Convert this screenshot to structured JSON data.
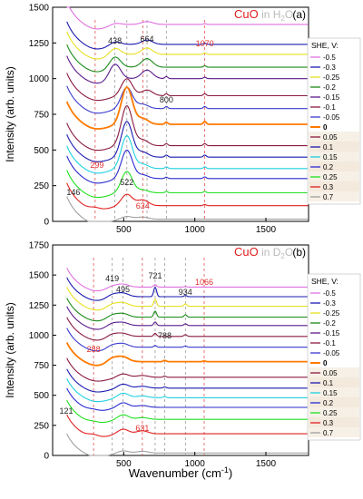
{
  "chart_data": [
    {
      "type": "line",
      "panel_label": "(a)",
      "title_parts": [
        "CuO",
        " in ",
        "H",
        "2",
        "O"
      ],
      "xlabel": "",
      "ylabel": "Intensity (arb. units)",
      "xlim": [
        0,
        1800
      ],
      "ylim": [
        0,
        1500
      ],
      "xticks": [
        "500",
        "1000",
        "1500"
      ],
      "yticks": [
        "0",
        "250",
        "500",
        "750",
        "1000",
        "1250",
        "1500"
      ],
      "legend_title": "SHE, V:",
      "legend_position": "right",
      "peak_labels": [
        {
          "x": 438,
          "text": "438",
          "color": "#222222"
        },
        {
          "x": 664,
          "text": "664",
          "color": "#222222"
        },
        {
          "x": 1070,
          "text": "1070",
          "color": "#e03030"
        },
        {
          "x": 800,
          "text": "800",
          "color": "#222222"
        },
        {
          "x": 299,
          "text": "299",
          "color": "#e03030"
        },
        {
          "x": 522,
          "text": "522",
          "color": "#222222"
        },
        {
          "x": 146,
          "text": "146",
          "color": "#222222"
        },
        {
          "x": 634,
          "text": "634",
          "color": "#e03030"
        }
      ],
      "dashed_lines_x": [
        299,
        438,
        522,
        634,
        664,
        800,
        1070
      ],
      "series": [
        {
          "name": "-0.5",
          "color": "#e070e0",
          "offset": 1380,
          "peaks": [
            [
              438,
              15
            ],
            [
              664,
              20
            ],
            [
              1070,
              5
            ]
          ]
        },
        {
          "name": "-0.3",
          "color": "#1a1ab0",
          "offset": 1240,
          "peaks": [
            [
              438,
              25
            ],
            [
              664,
              30
            ],
            [
              1070,
              8
            ]
          ]
        },
        {
          "name": "-0.25",
          "color": "#e8e020",
          "offset": 1170,
          "peaks": [
            [
              438,
              50
            ],
            [
              664,
              45
            ],
            [
              1070,
              10
            ]
          ]
        },
        {
          "name": "-0.2",
          "color": "#1a8a1a",
          "offset": 1080,
          "peaks": [
            [
              438,
              80
            ],
            [
              664,
              60
            ],
            [
              1070,
              10
            ]
          ]
        },
        {
          "name": "-0.15",
          "color": "#5a1a8a",
          "offset": 1000,
          "peaks": [
            [
              438,
              110
            ],
            [
              664,
              60
            ],
            [
              800,
              15
            ],
            [
              1070,
              10
            ]
          ]
        },
        {
          "name": "-0.1",
          "color": "#8a1a40",
          "offset": 880,
          "peaks": [
            [
              522,
              120
            ],
            [
              664,
              40
            ],
            [
              800,
              15
            ],
            [
              1070,
              15
            ]
          ]
        },
        {
          "name": "-0.05",
          "color": "#3a3ad0",
          "offset": 790,
          "peaks": [
            [
              522,
              150
            ],
            [
              634,
              30
            ],
            [
              800,
              15
            ],
            [
              1070,
              15
            ]
          ]
        },
        {
          "name": "0",
          "color": "#ff7a00",
          "offset": 680,
          "peaks": [
            [
              522,
              260
            ],
            [
              634,
              40
            ],
            [
              800,
              15
            ],
            [
              1070,
              20
            ]
          ]
        },
        {
          "name": "0.05",
          "color": "#8a1a40",
          "offset": 530,
          "peaks": [
            [
              522,
              280
            ],
            [
              634,
              40
            ],
            [
              800,
              15
            ],
            [
              1070,
              15
            ]
          ]
        },
        {
          "name": "0.1",
          "color": "#1a1ab0",
          "offset": 450,
          "peaks": [
            [
              522,
              250
            ],
            [
              634,
              35
            ],
            [
              800,
              15
            ],
            [
              1070,
              15
            ]
          ]
        },
        {
          "name": "0.15",
          "color": "#20d0e0",
          "offset": 370,
          "peaks": [
            [
              522,
              230
            ],
            [
              634,
              30
            ],
            [
              800,
              12
            ],
            [
              1070,
              12
            ]
          ]
        },
        {
          "name": "0.2",
          "color": "#2a2ad0",
          "offset": 300,
          "peaks": [
            [
              522,
              200
            ],
            [
              634,
              25
            ],
            [
              800,
              10
            ],
            [
              1070,
              12
            ]
          ]
        },
        {
          "name": "0.25",
          "color": "#20e020",
          "offset": 200,
          "peaks": [
            [
              522,
              150
            ],
            [
              634,
              20
            ],
            [
              800,
              10
            ],
            [
              1070,
              10
            ]
          ]
        },
        {
          "name": "0.3",
          "color": "#e02020",
          "offset": 110,
          "peaks": [
            [
              299,
              20
            ],
            [
              522,
              80
            ],
            [
              634,
              40
            ],
            [
              1070,
              8
            ]
          ]
        },
        {
          "name": "0.7",
          "color": "#a0a0a0",
          "offset": 15,
          "peaks": [
            [
              522,
              20
            ],
            [
              634,
              15
            ]
          ]
        }
      ]
    },
    {
      "type": "line",
      "panel_label": "(b)",
      "title_parts": [
        "CuO",
        " in ",
        "D",
        "2",
        "O"
      ],
      "xlabel": "Wavenumber (cm",
      "xlabel_sup": "-1",
      "xlabel_end": ")",
      "ylabel": "Intensity (arb. units)",
      "xlim": [
        0,
        1800
      ],
      "ylim": [
        0,
        1750
      ],
      "xticks": [
        "500",
        "1000",
        "1500"
      ],
      "yticks": [
        "0",
        "250",
        "500",
        "750",
        "1000",
        "1250",
        "1500",
        "1750"
      ],
      "legend_title": "SHE, V:",
      "legend_position": "right",
      "peak_labels": [
        {
          "x": 419,
          "text": "419",
          "color": "#222222"
        },
        {
          "x": 495,
          "text": "495",
          "color": "#222222"
        },
        {
          "x": 721,
          "text": "721",
          "color": "#222222"
        },
        {
          "x": 934,
          "text": "934",
          "color": "#222222"
        },
        {
          "x": 1066,
          "text": "1066",
          "color": "#e03030"
        },
        {
          "x": 288,
          "text": "288",
          "color": "#e03030"
        },
        {
          "x": 788,
          "text": "788",
          "color": "#222222"
        },
        {
          "x": 121,
          "text": "121",
          "color": "#222222"
        },
        {
          "x": 631,
          "text": "631",
          "color": "#e03030"
        }
      ],
      "dashed_lines_x": [
        288,
        419,
        495,
        631,
        721,
        788,
        934,
        1066
      ],
      "series": [
        {
          "name": "-0.5",
          "color": "#e070e0",
          "offset": 1400,
          "peaks": [
            [
              419,
              20
            ],
            [
              495,
              25
            ],
            [
              721,
              20
            ],
            [
              934,
              5
            ]
          ]
        },
        {
          "name": "-0.3",
          "color": "#1a1ab0",
          "offset": 1320,
          "peaks": [
            [
              419,
              30
            ],
            [
              495,
              30
            ],
            [
              721,
              80
            ],
            [
              934,
              10
            ]
          ]
        },
        {
          "name": "-0.25",
          "color": "#e8e020",
          "offset": 1240,
          "peaks": [
            [
              419,
              30
            ],
            [
              495,
              30
            ],
            [
              721,
              60
            ],
            [
              934,
              20
            ]
          ]
        },
        {
          "name": "-0.2",
          "color": "#1a8a1a",
          "offset": 1150,
          "peaks": [
            [
              419,
              30
            ],
            [
              495,
              30
            ],
            [
              721,
              50
            ],
            [
              934,
              20
            ]
          ]
        },
        {
          "name": "-0.15",
          "color": "#5a1a8a",
          "offset": 1080,
          "peaks": [
            [
              419,
              30
            ],
            [
              495,
              25
            ],
            [
              721,
              30
            ],
            [
              934,
              15
            ]
          ]
        },
        {
          "name": "-0.1",
          "color": "#8a1a40",
          "offset": 990,
          "peaks": [
            [
              419,
              30
            ],
            [
              495,
              25
            ],
            [
              721,
              25
            ],
            [
              934,
              15
            ]
          ]
        },
        {
          "name": "-0.05",
          "color": "#3a3ad0",
          "offset": 900,
          "peaks": [
            [
              419,
              30
            ],
            [
              495,
              30
            ],
            [
              721,
              15
            ],
            [
              934,
              10
            ]
          ]
        },
        {
          "name": "0",
          "color": "#ff7a00",
          "offset": 780,
          "peaks": [
            [
              419,
              40
            ],
            [
              495,
              40
            ],
            [
              788,
              10
            ],
            [
              1066,
              5
            ]
          ]
        },
        {
          "name": "0.05",
          "color": "#8a1a40",
          "offset": 650,
          "peaks": [
            [
              495,
              30
            ],
            [
              631,
              15
            ],
            [
              788,
              10
            ]
          ]
        },
        {
          "name": "0.1",
          "color": "#1a1ab0",
          "offset": 560,
          "peaks": [
            [
              495,
              35
            ],
            [
              631,
              15
            ],
            [
              788,
              10
            ]
          ]
        },
        {
          "name": "0.15",
          "color": "#20d0e0",
          "offset": 480,
          "peaks": [
            [
              495,
              40
            ],
            [
              631,
              15
            ],
            [
              788,
              10
            ]
          ]
        },
        {
          "name": "0.2",
          "color": "#2a2ad0",
          "offset": 400,
          "peaks": [
            [
              288,
              15
            ],
            [
              495,
              40
            ],
            [
              631,
              15
            ]
          ]
        },
        {
          "name": "0.25",
          "color": "#20e020",
          "offset": 300,
          "peaks": [
            [
              288,
              15
            ],
            [
              495,
              40
            ],
            [
              631,
              15
            ]
          ]
        },
        {
          "name": "0.3",
          "color": "#e02020",
          "offset": 180,
          "peaks": [
            [
              288,
              25
            ],
            [
              495,
              40
            ],
            [
              631,
              25
            ]
          ]
        },
        {
          "name": "0.7",
          "color": "#a0a0a0",
          "offset": 20,
          "peaks": [
            [
              495,
              20
            ],
            [
              631,
              15
            ]
          ]
        }
      ]
    }
  ]
}
